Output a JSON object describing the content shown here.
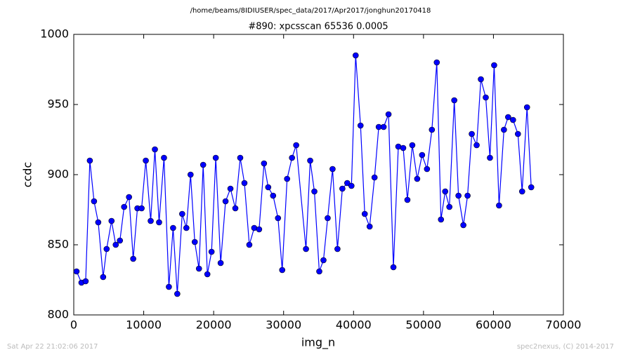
{
  "chart_data": {
    "type": "line",
    "suptitle": "/home/beams/8IDIUSER/spec_data/2017/Apr2017/jonghun20170418",
    "title": "#890: xpcsscan 65536 0.0005",
    "xlabel": "img_n",
    "ylabel": "ccdc",
    "footer_left": "Sat Apr 22 21:02:06 2017",
    "footer_right": "spec2nexus, (C) 2014-2017",
    "color": "#0000ff",
    "x": [
      400,
      1100,
      1700,
      2300,
      2900,
      3500,
      4200,
      4700,
      5400,
      6000,
      6600,
      7200,
      7900,
      8500,
      9100,
      9700,
      10300,
      11000,
      11600,
      12200,
      12900,
      13600,
      14200,
      14800,
      15500,
      16100,
      16700,
      17300,
      17900,
      18500,
      19100,
      19700,
      20300,
      21000,
      21700,
      22400,
      23100,
      23800,
      24400,
      25100,
      25800,
      26500,
      27200,
      27800,
      28500,
      29200,
      29800,
      30500,
      31200,
      31800,
      33200,
      33800,
      34400,
      35100,
      35700,
      36300,
      37000,
      37700,
      38400,
      39100,
      39700,
      40300,
      41000,
      41600,
      42300,
      43000,
      43600,
      44300,
      45000,
      45700,
      46400,
      47100,
      47700,
      48400,
      49100,
      49800,
      50500,
      51200,
      51900,
      52500,
      53100,
      53700,
      54400,
      55000,
      55700,
      56300,
      56900,
      57600,
      58200,
      58900,
      59500,
      60100,
      60800,
      61500,
      62100,
      62800,
      63500,
      64100,
      64800,
      65400
    ],
    "values": [
      831,
      823,
      824,
      910,
      881,
      866,
      827,
      847,
      867,
      850,
      853,
      877,
      884,
      840,
      876,
      876,
      910,
      867,
      918,
      866,
      912,
      820,
      862,
      815,
      872,
      862,
      900,
      852,
      833,
      907,
      829,
      845,
      912,
      837,
      881,
      890,
      876,
      912,
      894,
      850,
      862,
      861,
      908,
      891,
      885,
      869,
      832,
      897,
      912,
      921,
      847,
      910,
      888,
      831,
      839,
      869,
      904,
      847,
      890,
      894,
      892,
      985,
      935,
      872,
      863,
      898,
      934,
      934,
      943,
      834,
      920,
      919,
      882,
      921,
      897,
      914,
      904,
      932,
      980,
      868,
      888,
      877,
      953,
      885,
      864,
      885,
      929,
      921,
      968,
      955,
      912,
      978,
      878,
      932,
      941,
      939,
      929,
      888,
      948,
      891
    ],
    "xlim": [
      0,
      70000
    ],
    "ylim": [
      800,
      1000
    ],
    "xticks": [
      0,
      10000,
      20000,
      30000,
      40000,
      50000,
      60000,
      70000
    ],
    "yticks": [
      800,
      850,
      900,
      950,
      1000
    ]
  }
}
